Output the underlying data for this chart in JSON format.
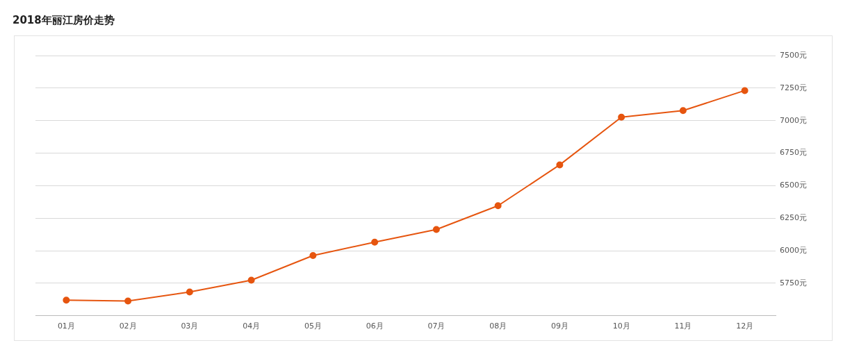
{
  "chart_data": {
    "type": "line",
    "title": "2018年丽江房价走势",
    "categories": [
      "01月",
      "02月",
      "03月",
      "04月",
      "05月",
      "06月",
      "07月",
      "08月",
      "09月",
      "10月",
      "11月",
      "12月"
    ],
    "series": [
      {
        "color": "#e6550f",
        "values": [
          5620,
          5614,
          5683,
          5774,
          5963,
          6066,
          6163,
          6346,
          6660,
          7026,
          7077,
          7231
        ]
      }
    ],
    "ylim": [
      5500,
      7500
    ],
    "yticks": [
      {
        "value": 5750,
        "label": "5750元"
      },
      {
        "value": 6000,
        "label": "6000元"
      },
      {
        "value": 6250,
        "label": "6250元"
      },
      {
        "value": 6500,
        "label": "6500元"
      },
      {
        "value": 6750,
        "label": "6750元"
      },
      {
        "value": 7000,
        "label": "7000元"
      },
      {
        "value": 7250,
        "label": "7250元"
      },
      {
        "value": 7500,
        "label": "7500元"
      }
    ],
    "grid": "y",
    "legend": false,
    "marker": "circle",
    "line_style": "solid"
  }
}
